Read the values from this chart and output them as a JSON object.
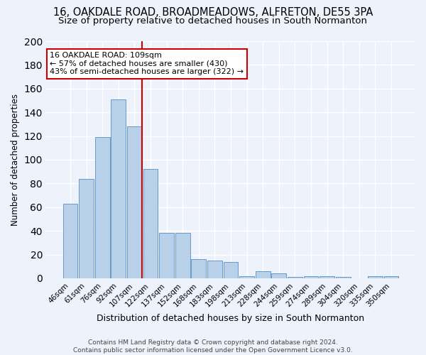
{
  "title": "16, OAKDALE ROAD, BROADMEADOWS, ALFRETON, DE55 3PA",
  "subtitle": "Size of property relative to detached houses in South Normanton",
  "xlabel": "Distribution of detached houses by size in South Normanton",
  "ylabel": "Number of detached properties",
  "bar_labels": [
    "46sqm",
    "61sqm",
    "76sqm",
    "92sqm",
    "107sqm",
    "122sqm",
    "137sqm",
    "152sqm",
    "168sqm",
    "183sqm",
    "198sqm",
    "213sqm",
    "228sqm",
    "244sqm",
    "259sqm",
    "274sqm",
    "289sqm",
    "304sqm",
    "320sqm",
    "335sqm",
    "350sqm"
  ],
  "bar_heights": [
    63,
    84,
    119,
    151,
    128,
    92,
    38,
    38,
    16,
    15,
    14,
    2,
    6,
    4,
    1,
    2,
    2,
    1,
    0,
    2,
    2
  ],
  "bar_color": "#b8d0e8",
  "bar_edge_color": "#6699cc",
  "vline_color": "#cc0000",
  "annotation_text": "16 OAKDALE ROAD: 109sqm\n← 57% of detached houses are smaller (430)\n43% of semi-detached houses are larger (322) →",
  "annotation_box_color": "#ffffff",
  "annotation_box_edge": "#cc0000",
  "ylim": [
    0,
    200
  ],
  "yticks": [
    0,
    20,
    40,
    60,
    80,
    100,
    120,
    140,
    160,
    180,
    200
  ],
  "footer1": "Contains HM Land Registry data © Crown copyright and database right 2024.",
  "footer2": "Contains public sector information licensed under the Open Government Licence v3.0.",
  "bg_color": "#eef2fb",
  "grid_color": "#ffffff",
  "title_fontsize": 10.5,
  "subtitle_fontsize": 9.5
}
